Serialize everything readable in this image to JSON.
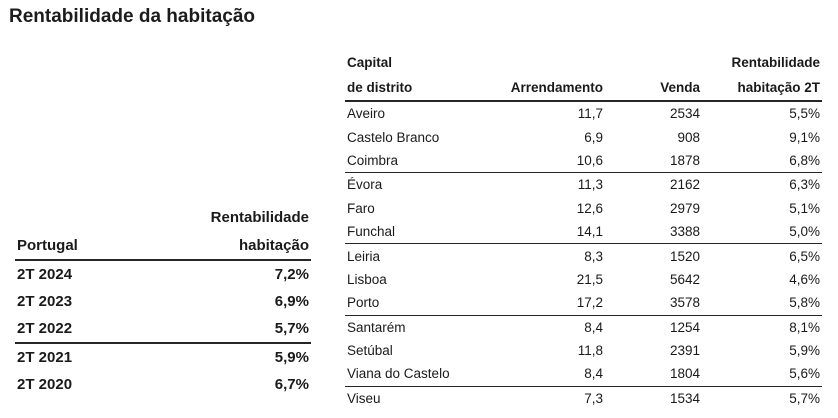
{
  "title": "Rentabilidade da habitação",
  "portugal_table": {
    "headers": {
      "col1": "Portugal",
      "col2_line1": "Rentabilidade",
      "col2_line2": "habitação"
    },
    "rows": [
      {
        "period": "2T 2024",
        "value": "7,2%"
      },
      {
        "period": "2T 2023",
        "value": "6,9%"
      },
      {
        "period": "2T 2022",
        "value": "5,7%"
      },
      {
        "period": "2T 2021",
        "value": "5,9%"
      },
      {
        "period": "2T 2020",
        "value": "6,7%"
      }
    ]
  },
  "district_table": {
    "headers": {
      "capital_line1": "Capital",
      "capital_line2": "de distrito",
      "arrendamento": "Arrendamento",
      "venda": "Venda",
      "rentabilidade_line1": "Rentabilidade",
      "rentabilidade_line2": "habitação 2T"
    },
    "rows": [
      {
        "capital": "Aveiro",
        "arrendamento": "11,7",
        "venda": "2534",
        "rentabilidade": "5,5%"
      },
      {
        "capital": "Castelo Branco",
        "arrendamento": "6,9",
        "venda": "908",
        "rentabilidade": "9,1%"
      },
      {
        "capital": "Coimbra",
        "arrendamento": "10,6",
        "venda": "1878",
        "rentabilidade": "6,8%"
      },
      {
        "capital": "Évora",
        "arrendamento": "11,3",
        "venda": "2162",
        "rentabilidade": "6,3%"
      },
      {
        "capital": "Faro",
        "arrendamento": "12,6",
        "venda": "2979",
        "rentabilidade": "5,1%"
      },
      {
        "capital": "Funchal",
        "arrendamento": "14,1",
        "venda": "3388",
        "rentabilidade": "5,0%"
      },
      {
        "capital": "Leiria",
        "arrendamento": "8,3",
        "venda": "1520",
        "rentabilidade": "6,5%"
      },
      {
        "capital": "Lisboa",
        "arrendamento": "21,5",
        "venda": "5642",
        "rentabilidade": "4,6%"
      },
      {
        "capital": "Porto",
        "arrendamento": "17,2",
        "venda": "3578",
        "rentabilidade": "5,8%"
      },
      {
        "capital": "Santarém",
        "arrendamento": "8,4",
        "venda": "1254",
        "rentabilidade": "8,1%"
      },
      {
        "capital": "Setúbal",
        "arrendamento": "11,8",
        "venda": "2391",
        "rentabilidade": "5,9%"
      },
      {
        "capital": "Viana do Castelo",
        "arrendamento": "8,4",
        "venda": "1804",
        "rentabilidade": "5,6%"
      },
      {
        "capital": "Viseu",
        "arrendamento": "7,3",
        "venda": "1534",
        "rentabilidade": "5,7%"
      }
    ]
  }
}
